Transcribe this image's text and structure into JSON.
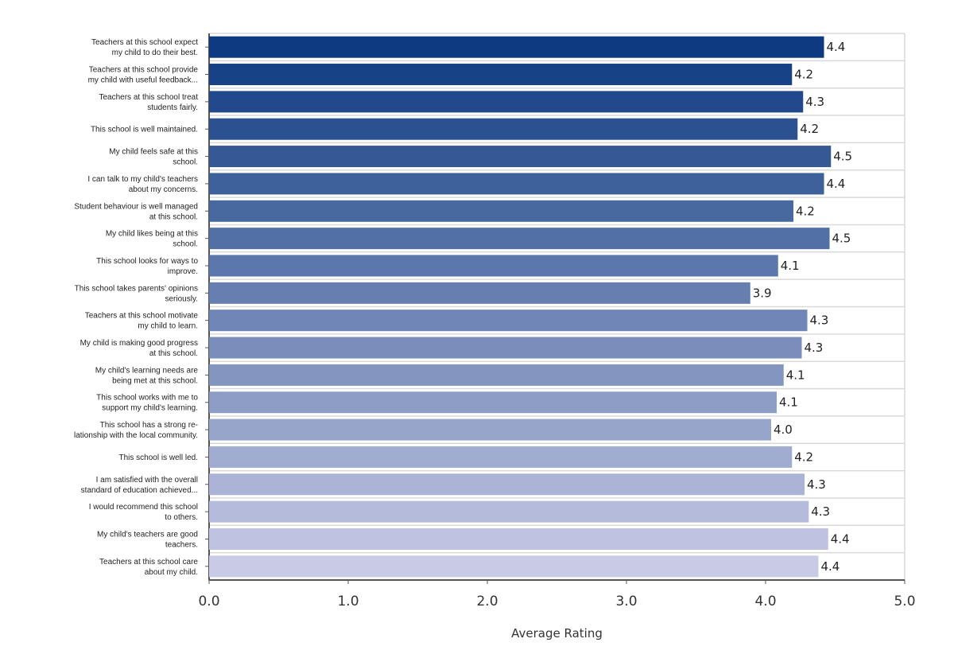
{
  "chart_data": {
    "type": "bar",
    "orientation": "horizontal",
    "xlabel": "Average Rating",
    "xlim": [
      0,
      5
    ],
    "xticks": [
      "0.0",
      "1.0",
      "2.0",
      "3.0",
      "4.0",
      "5.0"
    ],
    "grid": true,
    "categories": [
      [
        "Teachers at this school expect",
        "my child to do their best."
      ],
      [
        "Teachers at this school provide",
        "my child with useful feedback..."
      ],
      [
        "Teachers at this school treat",
        "students fairly."
      ],
      [
        "This school is well maintained."
      ],
      [
        "My child feels safe at this",
        "school."
      ],
      [
        "I can talk to my child's teachers",
        "about my concerns."
      ],
      [
        "Student behaviour is well managed",
        "at this school."
      ],
      [
        "My child likes being at this",
        "school."
      ],
      [
        "This school looks for ways to",
        "improve."
      ],
      [
        "This school takes parents' opinions",
        "seriously."
      ],
      [
        "Teachers at this school motivate",
        "my child to learn."
      ],
      [
        "My child is making good progress",
        "at this school."
      ],
      [
        "My child's learning needs are",
        "being met at this school."
      ],
      [
        "This school works with me to",
        "support my child's learning."
      ],
      [
        "This school has a strong re-",
        "lationship with the local community."
      ],
      [
        "This school is well led."
      ],
      [
        "I am satisfied with the overall",
        "standard of education achieved..."
      ],
      [
        "I would recommend this school",
        "to others."
      ],
      [
        "My child's teachers are good",
        "teachers."
      ],
      [
        "Teachers at this school care",
        "about my child."
      ]
    ],
    "values": [
      4.42,
      4.19,
      4.27,
      4.23,
      4.47,
      4.42,
      4.2,
      4.46,
      4.09,
      3.89,
      4.3,
      4.26,
      4.13,
      4.08,
      4.04,
      4.19,
      4.28,
      4.31,
      4.45,
      4.38
    ],
    "value_labels": [
      "4.4",
      "4.2",
      "4.3",
      "4.2",
      "4.5",
      "4.4",
      "4.2",
      "4.5",
      "4.1",
      "3.9",
      "4.3",
      "4.3",
      "4.1",
      "4.1",
      "4.0",
      "4.2",
      "4.3",
      "4.3",
      "4.4",
      "4.4"
    ],
    "colors": {
      "bar_start": "#0d3a80",
      "bar_end": "#c9cbe6"
    }
  }
}
